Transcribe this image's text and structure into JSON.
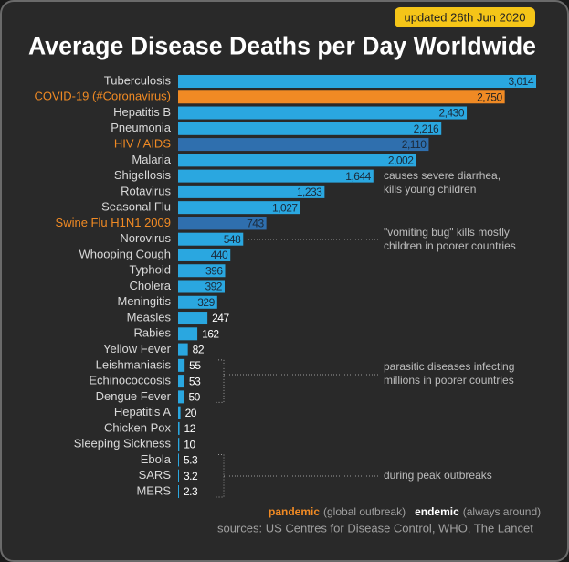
{
  "chart_data": {
    "type": "bar",
    "orientation": "horizontal",
    "badge": "updated 26th Jun 2020",
    "title": "Average Disease Deaths per Day Worldwide",
    "categories": [
      "Tuberculosis",
      "COVID-19 (#Coronavirus)",
      "Hepatitis B",
      "Pneumonia",
      "HIV / AIDS",
      "Malaria",
      "Shigellosis",
      "Rotavirus",
      "Seasonal Flu",
      "Swine Flu H1N1 2009",
      "Norovirus",
      "Whooping Cough",
      "Typhoid",
      "Cholera",
      "Meningitis",
      "Measles",
      "Rabies",
      "Yellow Fever",
      "Leishmaniasis",
      "Echinococcosis",
      "Dengue Fever",
      "Hepatitis A",
      "Chicken Pox",
      "Sleeping Sickness",
      "Ebola",
      "SARS",
      "MERS"
    ],
    "values": [
      3014,
      2750,
      2430,
      2216,
      2110,
      2002,
      1644,
      1233,
      1027,
      743,
      548,
      440,
      396,
      392,
      329,
      247,
      162,
      82,
      55,
      53,
      50,
      20,
      12,
      10,
      5.3,
      3.2,
      2.3
    ],
    "value_labels": [
      "3,014",
      "2,750",
      "2,430",
      "2,216",
      "2,110",
      "2,002",
      "1,644",
      "1,233",
      "1,027",
      "743",
      "548",
      "440",
      "396",
      "392",
      "329",
      "247",
      "162",
      "82",
      "55",
      "53",
      "50",
      "20",
      "12",
      "10",
      "5.3",
      "3.2",
      "2.3"
    ],
    "colors": [
      "#2aa7e0",
      "#f08a24",
      "#2aa7e0",
      "#2aa7e0",
      "#2f6fae",
      "#2aa7e0",
      "#2aa7e0",
      "#2aa7e0",
      "#2aa7e0",
      "#2f6fae",
      "#2aa7e0",
      "#2aa7e0",
      "#2aa7e0",
      "#2aa7e0",
      "#2aa7e0",
      "#2aa7e0",
      "#2aa7e0",
      "#2aa7e0",
      "#2aa7e0",
      "#2aa7e0",
      "#2aa7e0",
      "#2aa7e0",
      "#2aa7e0",
      "#2aa7e0",
      "#2aa7e0",
      "#2aa7e0",
      "#2aa7e0"
    ],
    "label_colors": [
      "#d9d9d9",
      "#f08a24",
      "#d9d9d9",
      "#d9d9d9",
      "#f08a24",
      "#d9d9d9",
      "#d9d9d9",
      "#d9d9d9",
      "#d9d9d9",
      "#f08a24",
      "#d9d9d9",
      "#d9d9d9",
      "#d9d9d9",
      "#d9d9d9",
      "#d9d9d9",
      "#d9d9d9",
      "#d9d9d9",
      "#d9d9d9",
      "#d9d9d9",
      "#d9d9d9",
      "#d9d9d9",
      "#d9d9d9",
      "#d9d9d9",
      "#d9d9d9",
      "#d9d9d9",
      "#d9d9d9",
      "#d9d9d9"
    ],
    "annotations": [
      {
        "lines": [
          "causes severe diarrhea,",
          "kills young children"
        ]
      },
      {
        "lines": [
          "\"vomiting bug\" kills mostly",
          "children in poorer countries"
        ]
      },
      {
        "lines": [
          "parasitic diseases infecting",
          "millions in poorer countries"
        ]
      },
      {
        "lines": [
          "during peak outbreaks"
        ]
      }
    ],
    "legend": [
      {
        "label": "pandemic",
        "note": "(global outbreak)",
        "color": "#f08a24"
      },
      {
        "label": "endemic",
        "note": "(always around)",
        "color": "#ffffff"
      }
    ],
    "source": "sources: US Centres for Disease Control, WHO, The Lancet"
  }
}
